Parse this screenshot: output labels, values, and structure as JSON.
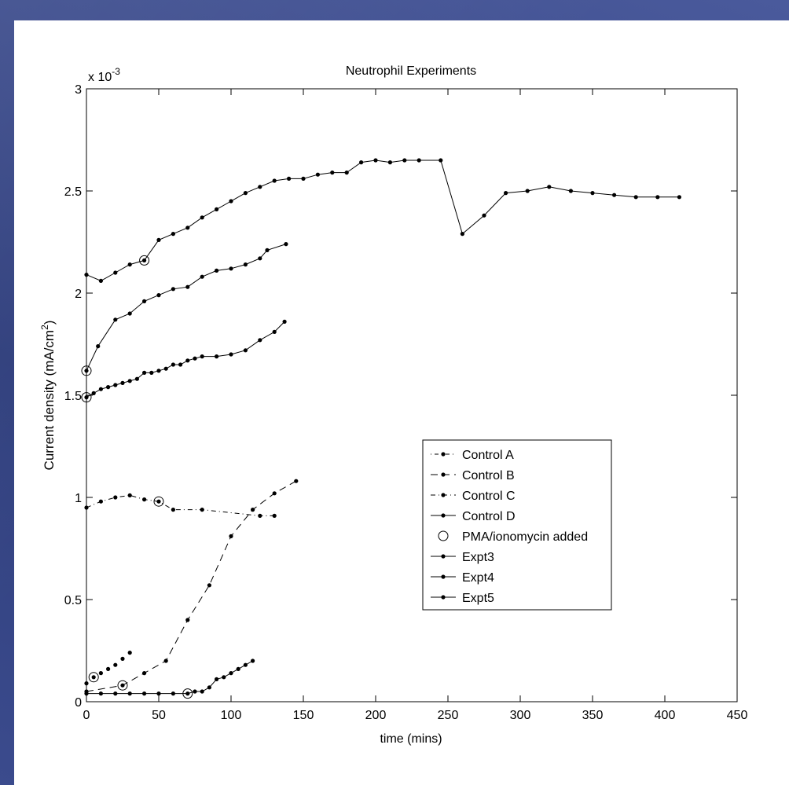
{
  "chart_data": {
    "type": "line",
    "title": "Neutrophil Experiments",
    "xlabel": "time (mins)",
    "ylabel_main": "Current density (mA/cm",
    "ylabel_sup": "2",
    "ylabel_close": ")",
    "y_multiplier_base": "x 10",
    "y_multiplier_exp": "-3",
    "xlim": [
      0,
      450
    ],
    "ylim": [
      0,
      3
    ],
    "x_ticks": [
      0,
      50,
      100,
      150,
      200,
      250,
      300,
      350,
      400,
      450
    ],
    "y_ticks": [
      0,
      0.5,
      1,
      1.5,
      2,
      2.5,
      3
    ],
    "x_tick_labels": [
      "0",
      "50",
      "100",
      "150",
      "200",
      "250",
      "300",
      "350",
      "400",
      "450"
    ],
    "y_tick_labels": [
      "0",
      "0.5",
      "1",
      "1.5",
      "2",
      "2.5",
      "3"
    ],
    "legend_position": "center-right",
    "legend": [
      {
        "label": "Control A",
        "dash": "1,4,5,4"
      },
      {
        "label": "Control B",
        "dash": "9,6"
      },
      {
        "label": "Control C",
        "dash": "6,4,1,4"
      },
      {
        "label": "Control D",
        "dash": ""
      },
      {
        "label": "PMA/ionomycin added",
        "marker": "circle"
      },
      {
        "label": "Expt3",
        "dash": ""
      },
      {
        "label": "Expt4",
        "dash": ""
      },
      {
        "label": "Expt5",
        "dash": ""
      }
    ],
    "series": [
      {
        "name": "Control A",
        "dash": "none",
        "line": false,
        "points": [
          [
            0,
            0.09
          ],
          [
            5,
            0.12
          ],
          [
            10,
            0.14
          ],
          [
            15,
            0.16
          ],
          [
            20,
            0.18
          ],
          [
            25,
            0.21
          ],
          [
            30,
            0.24
          ]
        ]
      },
      {
        "name": "Control B",
        "dash": "9,6",
        "points": [
          [
            0,
            0.05
          ],
          [
            25,
            0.08
          ],
          [
            40,
            0.14
          ],
          [
            55,
            0.2
          ],
          [
            70,
            0.4
          ],
          [
            85,
            0.57
          ],
          [
            100,
            0.81
          ],
          [
            115,
            0.94
          ],
          [
            130,
            1.02
          ],
          [
            145,
            1.08
          ]
        ]
      },
      {
        "name": "Control C",
        "dash": "6,4,1,4",
        "points": [
          [
            0,
            0.95
          ],
          [
            10,
            0.98
          ],
          [
            20,
            1.0
          ],
          [
            30,
            1.01
          ],
          [
            40,
            0.99
          ],
          [
            50,
            0.98
          ],
          [
            60,
            0.94
          ],
          [
            80,
            0.94
          ],
          [
            120,
            0.91
          ],
          [
            130,
            0.91
          ]
        ]
      },
      {
        "name": "Control D",
        "dash": "",
        "points": [
          [
            0,
            0.04
          ],
          [
            10,
            0.04
          ],
          [
            20,
            0.04
          ],
          [
            30,
            0.04
          ],
          [
            40,
            0.04
          ],
          [
            50,
            0.04
          ],
          [
            60,
            0.04
          ],
          [
            70,
            0.04
          ],
          [
            75,
            0.05
          ],
          [
            80,
            0.05
          ],
          [
            85,
            0.07
          ],
          [
            90,
            0.11
          ],
          [
            95,
            0.12
          ],
          [
            100,
            0.14
          ],
          [
            105,
            0.16
          ],
          [
            110,
            0.18
          ],
          [
            115,
            0.2
          ]
        ]
      },
      {
        "name": "Expt3",
        "dash": "",
        "points": [
          [
            0,
            1.49
          ],
          [
            5,
            1.51
          ],
          [
            10,
            1.53
          ],
          [
            15,
            1.54
          ],
          [
            20,
            1.55
          ],
          [
            25,
            1.56
          ],
          [
            30,
            1.57
          ],
          [
            35,
            1.58
          ],
          [
            40,
            1.61
          ],
          [
            45,
            1.61
          ],
          [
            50,
            1.62
          ],
          [
            55,
            1.63
          ],
          [
            60,
            1.65
          ],
          [
            65,
            1.65
          ],
          [
            70,
            1.67
          ],
          [
            75,
            1.68
          ],
          [
            80,
            1.69
          ],
          [
            90,
            1.69
          ],
          [
            100,
            1.7
          ],
          [
            110,
            1.72
          ],
          [
            120,
            1.77
          ],
          [
            130,
            1.81
          ],
          [
            137,
            1.86
          ]
        ]
      },
      {
        "name": "Expt4",
        "dash": "",
        "points": [
          [
            0,
            1.62
          ],
          [
            8,
            1.74
          ],
          [
            20,
            1.87
          ],
          [
            30,
            1.9
          ],
          [
            40,
            1.96
          ],
          [
            50,
            1.99
          ],
          [
            60,
            2.02
          ],
          [
            70,
            2.03
          ],
          [
            80,
            2.08
          ],
          [
            90,
            2.11
          ],
          [
            100,
            2.12
          ],
          [
            110,
            2.14
          ],
          [
            120,
            2.17
          ],
          [
            125,
            2.21
          ],
          [
            138,
            2.24
          ]
        ]
      },
      {
        "name": "Expt5",
        "dash": "",
        "points": [
          [
            0,
            2.09
          ],
          [
            10,
            2.06
          ],
          [
            20,
            2.1
          ],
          [
            30,
            2.14
          ],
          [
            40,
            2.16
          ],
          [
            50,
            2.26
          ],
          [
            60,
            2.29
          ],
          [
            70,
            2.32
          ],
          [
            80,
            2.37
          ],
          [
            90,
            2.41
          ],
          [
            100,
            2.45
          ],
          [
            110,
            2.49
          ],
          [
            120,
            2.52
          ],
          [
            130,
            2.55
          ],
          [
            140,
            2.56
          ],
          [
            150,
            2.56
          ],
          [
            160,
            2.58
          ],
          [
            170,
            2.59
          ],
          [
            180,
            2.59
          ],
          [
            190,
            2.64
          ],
          [
            200,
            2.65
          ],
          [
            210,
            2.64
          ],
          [
            220,
            2.65
          ],
          [
            230,
            2.65
          ],
          [
            245,
            2.65
          ],
          [
            260,
            2.29
          ],
          [
            275,
            2.38
          ],
          [
            290,
            2.49
          ],
          [
            305,
            2.5
          ],
          [
            320,
            2.52
          ],
          [
            335,
            2.5
          ],
          [
            350,
            2.49
          ],
          [
            365,
            2.48
          ],
          [
            380,
            2.47
          ],
          [
            395,
            2.47
          ],
          [
            410,
            2.47
          ]
        ]
      }
    ],
    "pma_added": [
      [
        5,
        0.12
      ],
      [
        25,
        0.08
      ],
      [
        50,
        0.98
      ],
      [
        70,
        0.04
      ],
      [
        0,
        1.49
      ],
      [
        0,
        1.62
      ],
      [
        40,
        2.16
      ]
    ]
  }
}
